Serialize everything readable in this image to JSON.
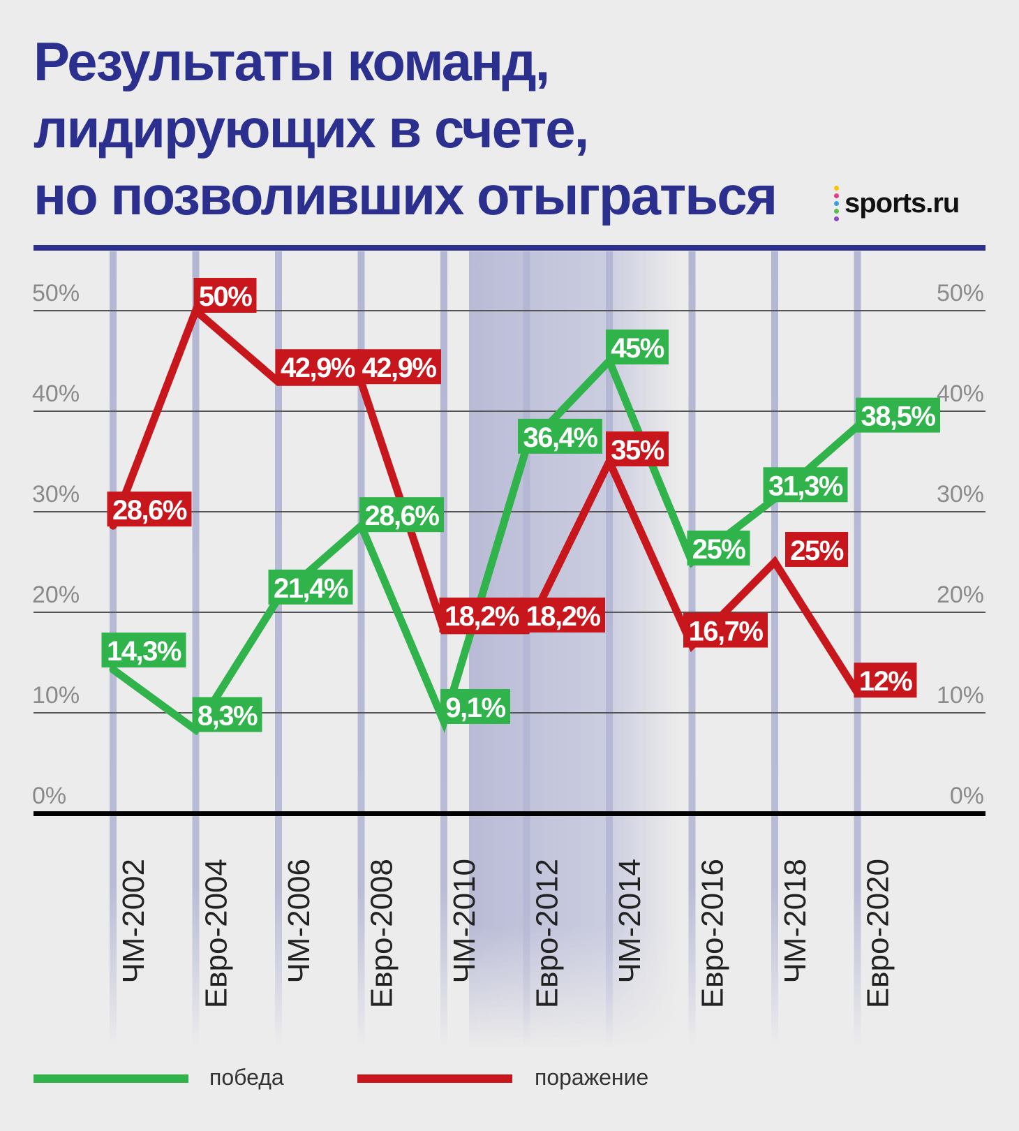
{
  "title_lines": [
    "Результаты команд,",
    "лидирующих в счете,",
    "но позволивших отыграться"
  ],
  "logo": {
    "text": "sports.ru",
    "dot_colors": [
      "#f7c600",
      "#e63a8a",
      "#3aa2e0",
      "#5bbd4a",
      "#8a4ac8"
    ]
  },
  "colors": {
    "win": "#2fb34a",
    "loss": "#c8161d",
    "title": "#2b2f8e",
    "column": "#b4b7d4",
    "highlight": "#c4c6dd"
  },
  "legend": {
    "win": "победа",
    "loss": "поражение"
  },
  "chart_data": {
    "type": "line",
    "categories": [
      "ЧМ-2002",
      "Евро-2004",
      "ЧМ-2006",
      "Евро-2008",
      "ЧМ-2010",
      "Евро-2012",
      "ЧМ-2014",
      "Евро-2016",
      "ЧМ-2018",
      "Евро-2020"
    ],
    "ylim": [
      0,
      50
    ],
    "yticks": [
      "0%",
      "10%",
      "20%",
      "30%",
      "40%",
      "50%"
    ],
    "grid": true,
    "legend_position": "bottom",
    "series": [
      {
        "key": "win",
        "name": "победа",
        "values": [
          14.3,
          8.3,
          21.4,
          28.6,
          9.1,
          36.4,
          45,
          25,
          31.3,
          38.5
        ],
        "labels": [
          "14,3%",
          "8,3%",
          "21,4%",
          "28,6%",
          "9,1%",
          "36,4%",
          "45%",
          "25%",
          "31,3%",
          "38,5%"
        ]
      },
      {
        "key": "loss",
        "name": "поражение",
        "values": [
          28.6,
          50,
          42.9,
          42.9,
          18.2,
          18.2,
          35,
          16.7,
          25,
          12
        ],
        "labels": [
          "28,6%",
          "50%",
          "42,9%",
          "42,9%",
          "18,2%",
          "18,2%",
          "35%",
          "16,7%",
          "25%",
          "12%"
        ]
      }
    ]
  }
}
